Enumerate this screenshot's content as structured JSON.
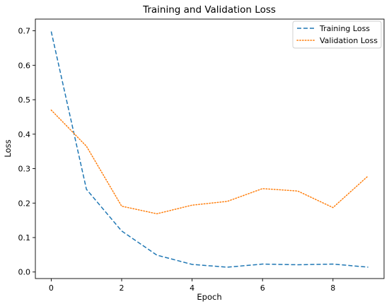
{
  "chart_data": {
    "type": "line",
    "title": "Training and Validation Loss",
    "xlabel": "Epoch",
    "ylabel": "Loss",
    "x": [
      0,
      1,
      2,
      3,
      4,
      5,
      6,
      7,
      8,
      9
    ],
    "xticks": [
      0,
      2,
      4,
      6,
      8
    ],
    "yticks": [
      0.0,
      0.1,
      0.2,
      0.3,
      0.4,
      0.5,
      0.6,
      0.7
    ],
    "ytick_labels": [
      "0.0",
      "0.1",
      "0.2",
      "0.3",
      "0.4",
      "0.5",
      "0.6",
      "0.7"
    ],
    "xlim": [
      -0.45,
      9.45
    ],
    "ylim": [
      -0.019,
      0.734
    ],
    "grid": false,
    "legend": "top-right",
    "series": [
      {
        "name": "Training Loss",
        "color": "#1f77b4",
        "linestyle": "dashed",
        "values": [
          0.698,
          0.24,
          0.119,
          0.049,
          0.022,
          0.014,
          0.023,
          0.021,
          0.023,
          0.014
        ]
      },
      {
        "name": "Validation Loss",
        "color": "#ff7f0e",
        "linestyle": "dotted",
        "values": [
          0.47,
          0.365,
          0.191,
          0.169,
          0.194,
          0.205,
          0.242,
          0.235,
          0.187,
          0.279
        ]
      }
    ]
  }
}
